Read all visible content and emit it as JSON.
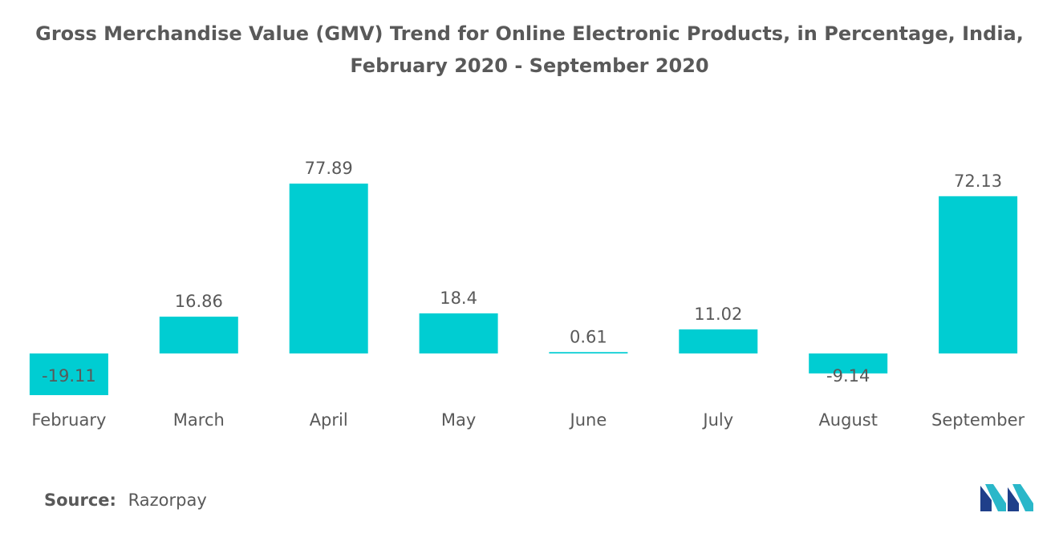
{
  "title": {
    "line1": "Gross Merchandise Value (GMV) Trend for Online Electronic Products, in Percentage, India,",
    "line2": "February 2020 - September 2020"
  },
  "source": {
    "label": "Source:",
    "value": "Razorpay"
  },
  "colors": {
    "bar": "#00cdd2",
    "text": "#595959",
    "logo_dark": "#1f3f8a",
    "logo_light": "#2ab7c9"
  },
  "chart_data": {
    "type": "bar",
    "categories": [
      "February",
      "March",
      "April",
      "May",
      "June",
      "July",
      "August",
      "September"
    ],
    "values": [
      -19.11,
      16.86,
      77.89,
      18.4,
      0.61,
      11.02,
      -9.14,
      72.13
    ],
    "value_labels": [
      "-19.11",
      "16.86",
      "77.89",
      "18.4",
      "0.61",
      "11.02",
      "-9.14",
      "72.13"
    ],
    "xlabel": "",
    "ylabel": "",
    "ylim": [
      -25,
      85
    ],
    "grid": false,
    "legend": "none"
  }
}
